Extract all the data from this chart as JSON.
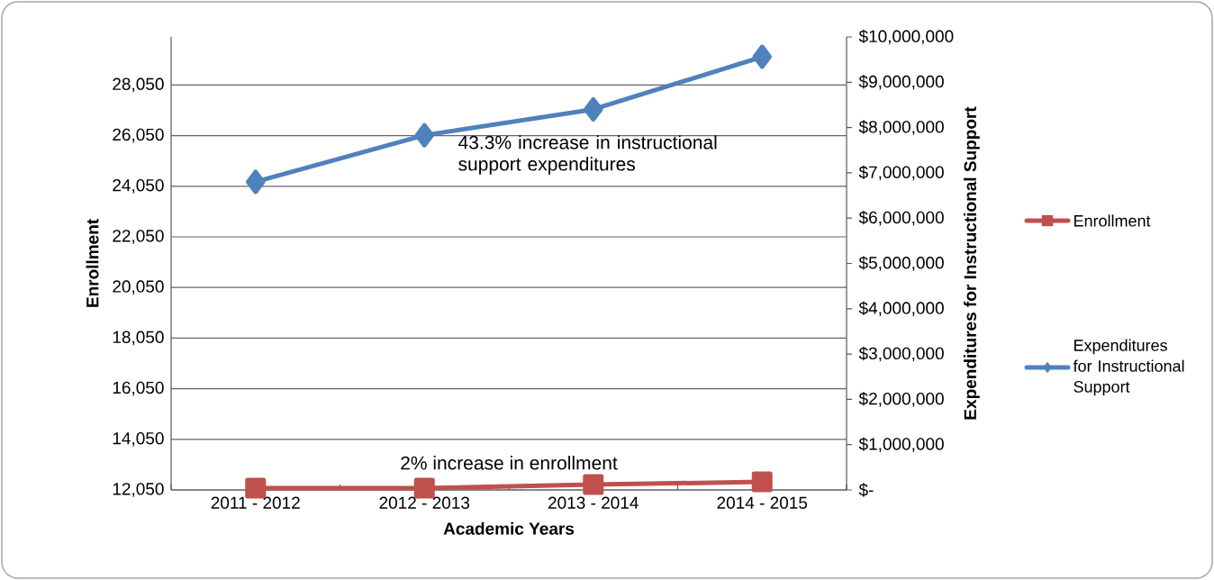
{
  "chart_data": {
    "type": "line",
    "xlabel": "Academic Years",
    "ylabel": "Enrollment",
    "y2label": "Expenditures for Instructional Support",
    "categories": [
      "2011 - 2012",
      "2012 - 2013",
      "2013 - 2014",
      "2014 - 2015"
    ],
    "series": [
      {
        "name": "Enrollment",
        "color": "#c0504d",
        "marker": "square",
        "values": [
          12120,
          12120,
          12260,
          12370
        ]
      },
      {
        "name": "Expenditures for Instructional Support",
        "color": "#4f81bd",
        "marker": "diamond",
        "axis": "y2",
        "values": [
          6800000,
          7830000,
          8400000,
          9560000
        ]
      }
    ],
    "ylim": [
      12050,
      29950
    ],
    "yticks": [
      {
        "value": 12050,
        "label": "12,050"
      },
      {
        "value": 14050,
        "label": "14,050"
      },
      {
        "value": 16050,
        "label": "16,050"
      },
      {
        "value": 18050,
        "label": "18,050"
      },
      {
        "value": 20050,
        "label": "20,050"
      },
      {
        "value": 22050,
        "label": "22,050"
      },
      {
        "value": 24050,
        "label": "24,050"
      },
      {
        "value": 26050,
        "label": "26,050"
      },
      {
        "value": 28050,
        "label": "28,050"
      }
    ],
    "y2lim": [
      0,
      10000000
    ],
    "y2ticks": [
      {
        "value": 0,
        "label": "$-"
      },
      {
        "value": 1000000,
        "label": "$1,000,000"
      },
      {
        "value": 2000000,
        "label": "$2,000,000"
      },
      {
        "value": 3000000,
        "label": "$3,000,000"
      },
      {
        "value": 4000000,
        "label": "$4,000,000"
      },
      {
        "value": 5000000,
        "label": "$5,000,000"
      },
      {
        "value": 6000000,
        "label": "$6,000,000"
      },
      {
        "value": 7000000,
        "label": "$7,000,000"
      },
      {
        "value": 8000000,
        "label": "$8,000,000"
      },
      {
        "value": 9000000,
        "label": "$9,000,000"
      },
      {
        "value": 10000000,
        "label": "$10,000,000"
      }
    ],
    "grid": "y",
    "legend": "right",
    "annotations": [
      "43.3% increase in instructional support expenditures",
      "2% increase in enrollment"
    ]
  }
}
